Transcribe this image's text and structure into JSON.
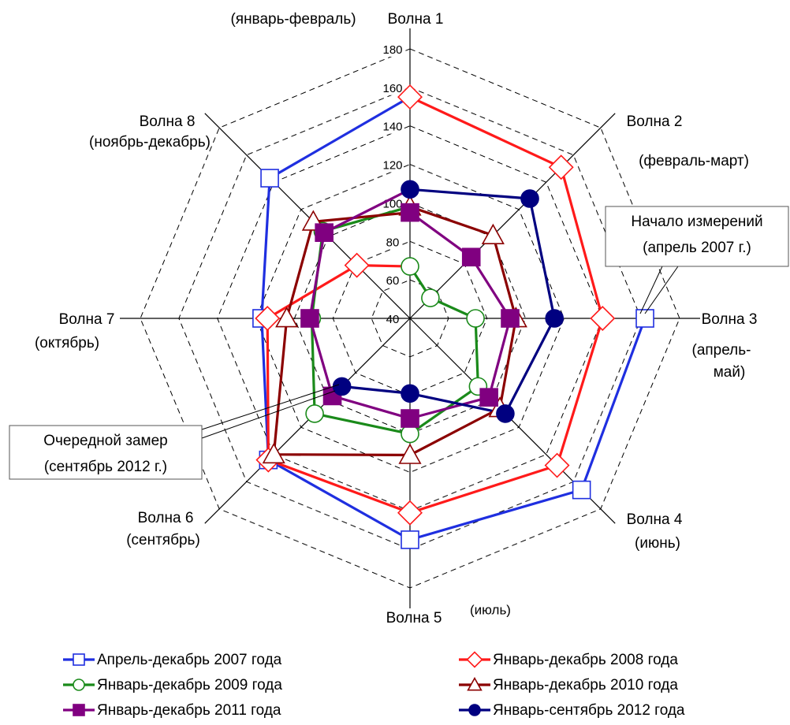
{
  "chart_data": {
    "type": "radar",
    "categories": [
      "Волна 1",
      "Волна 2",
      "Волна 3",
      "Волна 4",
      "Волна 5",
      "Волна 6",
      "Волна 7",
      "Волна 8"
    ],
    "period_labels": [
      [
        "(январь-февраль)"
      ],
      [
        "(февраль-март)"
      ],
      [
        "(апрель-",
        "май)"
      ],
      [
        "(июнь)"
      ],
      [
        "(июль)"
      ],
      [
        "(сентябрь)"
      ],
      [
        "(октябрь)"
      ],
      [
        "(ноябрь-декабрь)"
      ]
    ],
    "rlim": [
      40,
      180
    ],
    "rticks": [
      40,
      60,
      80,
      100,
      120,
      140,
      160,
      180
    ],
    "grid": true,
    "series": [
      {
        "name": "Апрель-декабрь 2007 года",
        "color": "#1f2fe0",
        "marker": "square",
        "filled": false,
        "values": [
          null,
          null,
          162,
          166,
          155,
          144,
          117,
          143
        ]
      },
      {
        "name": "Январь-декабрь 2008 года",
        "color": "#ff1a1a",
        "marker": "diamond",
        "filled": false,
        "values": [
          155,
          151,
          140,
          148,
          141,
          144,
          114,
          79
        ]
      },
      {
        "name": "Январь-декабрь 2009 года",
        "color": "#1a8a1a",
        "marker": "circle",
        "filled": false,
        "values": [
          67,
          55,
          74,
          90,
          100,
          110,
          91,
          104
        ]
      },
      {
        "name": "Январь-декабрь 2010 года",
        "color": "#8b0000",
        "marker": "triangle",
        "filled": false,
        "values": [
          98,
          101,
          95,
          106,
          111,
          140,
          104,
          111
        ]
      },
      {
        "name": "Январь-декабрь 2011 года",
        "color": "#800080",
        "marker": "square",
        "filled": true,
        "values": [
          95,
          85,
          92,
          98,
          92,
          97,
          92,
          103
        ]
      },
      {
        "name": "Январь-сентябрь 2012 года",
        "color": "#000080",
        "marker": "circle",
        "filled": true,
        "values": [
          107,
          128,
          115,
          110,
          79,
          90,
          null,
          null
        ]
      }
    ],
    "annotations": [
      {
        "lines": [
          "Начало измерений",
          "(апрель 2007 г.)"
        ]
      },
      {
        "lines": [
          "Очередной замер",
          "(сентябрь 2012 г.)"
        ]
      }
    ]
  }
}
